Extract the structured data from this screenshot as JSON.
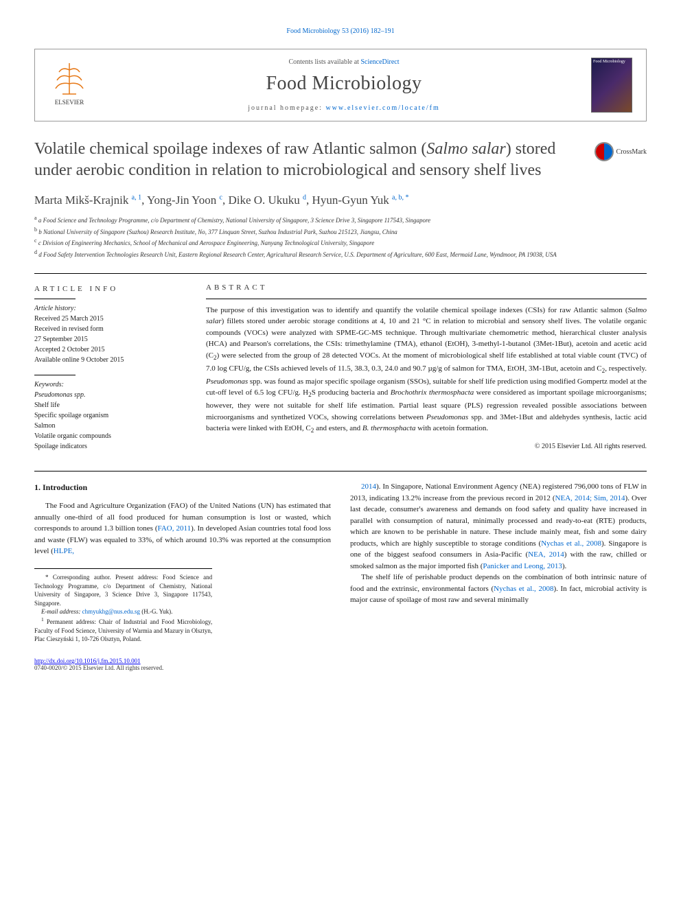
{
  "header": {
    "citation_prefix": "Food Microbiology 53 (2016) 182–191",
    "contents_line_prefix": "Contents lists available at ",
    "contents_link": "ScienceDirect",
    "journal_name": "Food Microbiology",
    "homepage_prefix": "journal homepage: ",
    "homepage_url": "www.elsevier.com/locate/fm"
  },
  "crossmark": "CrossMark",
  "title_html": "Volatile chemical spoilage indexes of raw Atlantic salmon (<em>Salmo salar</em>) stored under aerobic condition in relation to microbiological and sensory shelf lives",
  "authors_html": "Marta Mikš-Krajnik <sup>a, 1</sup>, Yong-Jin Yoon <sup>c</sup>, Dike O. Ukuku <sup>d</sup>, Hyun-Gyun Yuk <sup>a, b, *</sup>",
  "affiliations": [
    "a Food Science and Technology Programme, c/o Department of Chemistry, National University of Singapore, 3 Science Drive 3, Singapore 117543, Singapore",
    "b National University of Singapore (Suzhou) Research Institute, No, 377 Linquan Street, Suzhou Industrial Park, Suzhou 215123, Jiangsu, China",
    "c Division of Engineering Mechanics, School of Mechanical and Aerospace Engineering, Nanyang Technological University, Singapore",
    "d Food Safety Intervention Technologies Research Unit, Eastern Regional Research Center, Agricultural Research Service, U.S. Department of Agriculture, 600 East, Mermaid Lane, Wyndmoor, PA 19038, USA"
  ],
  "article_info": {
    "heading": "ARTICLE INFO",
    "history_label": "Article history:",
    "history": [
      "Received 25 March 2015",
      "Received in revised form",
      "27 September 2015",
      "Accepted 2 October 2015",
      "Available online 9 October 2015"
    ],
    "keywords_label": "Keywords:",
    "keywords": [
      "Pseudomonas spp.",
      "Shelf life",
      "Specific spoilage organism",
      "Salmon",
      "Volatile organic compounds",
      "Spoilage indicators"
    ]
  },
  "abstract": {
    "heading": "ABSTRACT",
    "text_html": "The purpose of this investigation was to identify and quantify the volatile chemical spoilage indexes (CSIs) for raw Atlantic salmon (<em>Salmo salar</em>) fillets stored under aerobic storage conditions at 4, 10 and 21 °C in relation to microbial and sensory shelf lives. The volatile organic compounds (VOCs) were analyzed with SPME-GC-MS technique. Through multivariate chemometric method, hierarchical cluster analysis (HCA) and Pearson's correlations, the CSIs: trimethylamine (TMA), ethanol (EtOH), 3-methyl-1-butanol (3Met-1But), acetoin and acetic acid (C<sub>2</sub>) were selected from the group of 28 detected VOCs. At the moment of microbiological shelf life established at total viable count (TVC) of 7.0 log CFU/g, the CSIs achieved levels of 11.5, 38.3, 0.3, 24.0 and 90.7 µg/g of salmon for TMA, EtOH, 3M-1But, acetoin and C<sub>2</sub>, respectively. <em>Pseudomonas</em> spp. was found as major specific spoilage organism (SSOs), suitable for shelf life prediction using modified Gompertz model at the cut-off level of 6.5 log CFU/g. H<sub>2</sub>S producing bacteria and <em>Brochothrix thermosphacta</em> were considered as important spoilage microorganisms; however, they were not suitable for shelf life estimation. Partial least square (PLS) regression revealed possible associations between microorganisms and synthetized VOCs, showing correlations between <em>Pseudomonas</em> spp. and 3Met-1But and aldehydes synthesis, lactic acid bacteria were linked with EtOH, C<sub>2</sub> and esters, and <em>B. thermosphacta</em> with acetoin formation.",
    "copyright": "© 2015 Elsevier Ltd. All rights reserved."
  },
  "body": {
    "section_number": "1.",
    "section_title": "Introduction",
    "col1_p1_html": "The Food and Agriculture Organization (FAO) of the United Nations (UN) has estimated that annually one-third of all food produced for human consumption is lost or wasted, which corresponds to around 1.3 billion tones (<a href='#'>FAO, 2011</a>). In developed Asian countries total food loss and waste (FLW) was equaled to 33%, of which around 10.3% was reported at the consumption level (<a href='#'>HLPE,</a>",
    "col2_p1_html": "<a href='#'>2014</a>). In Singapore, National Environment Agency (NEA) registered 796,000 tons of FLW in 2013, indicating 13.2% increase from the previous record in 2012 (<a href='#'>NEA, 2014; Sim, 2014</a>). Over last decade, consumer's awareness and demands on food safety and quality have increased in parallel with consumption of natural, minimally processed and ready-to-eat (RTE) products, which are known to be perishable in nature. These include mainly meat, fish and some dairy products, which are highly susceptible to storage conditions (<a href='#'>Nychas et al., 2008</a>). Singapore is one of the biggest seafood consumers in Asia-Pacific (<a href='#'>NEA, 2014</a>) with the raw, chilled or smoked salmon as the major imported fish (<a href='#'>Panicker and Leong, 2013</a>).",
    "col2_p2_html": "The shelf life of perishable product depends on the combination of both intrinsic nature of food and the extrinsic, environmental factors (<a href='#'>Nychas et al., 2008</a>). In fact, microbial activity is major cause of spoilage of most raw and several minimally"
  },
  "footnotes": {
    "corr_html": "* Corresponding author. Present address: Food Science and Technology Programme, c/o Department of Chemistry, National University of Singapore, 3 Science Drive 3, Singapore 117543, Singapore.",
    "email_label": "E-mail address: ",
    "email": "chmyukhg@nus.edu.sg",
    "email_suffix": " (H.-G. Yuk).",
    "perm_html": "<sup>1</sup> Permanent address: Chair of Industrial and Food Microbiology, Faculty of Food Science, University of Warmia and Mazury in Olsztyn, Plac Cieszyński 1, 10-726 Olsztyn, Poland."
  },
  "footer": {
    "doi": "http://dx.doi.org/10.1016/j.fm.2015.10.001",
    "issn_copyright": "0740-0020/© 2015 Elsevier Ltd. All rights reserved."
  },
  "colors": {
    "link": "#0066cc",
    "text": "#1a1a1a",
    "heading_gray": "#444444"
  }
}
